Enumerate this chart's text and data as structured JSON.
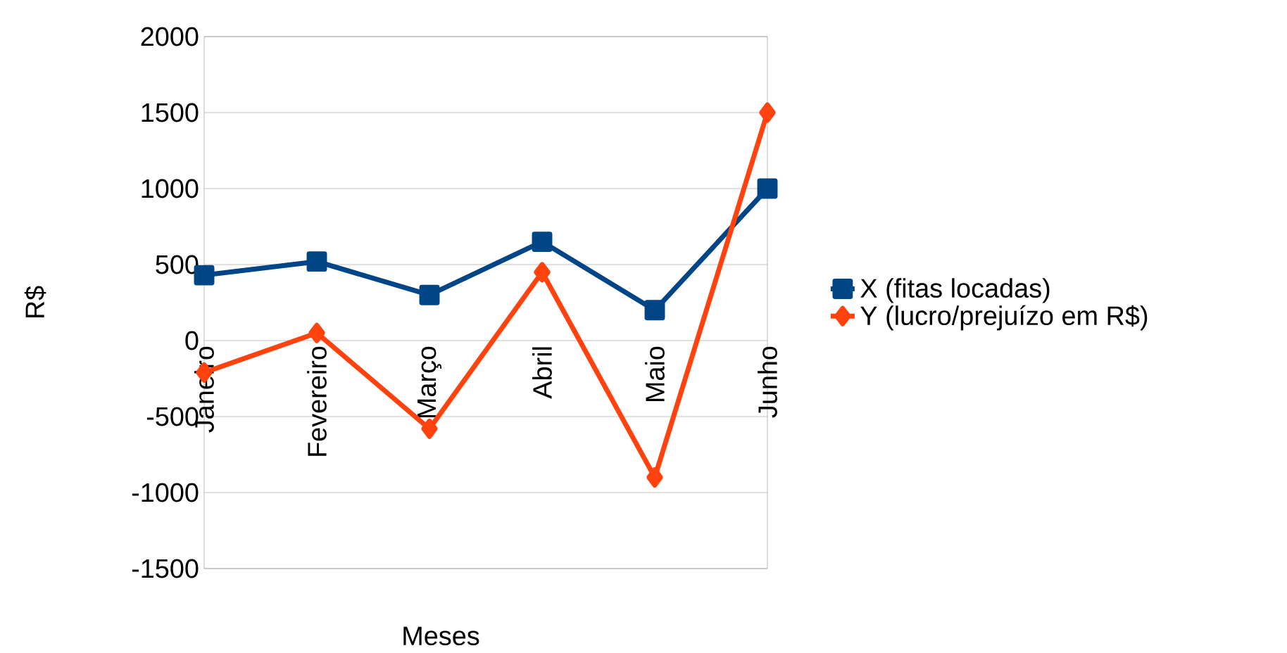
{
  "chart_data": {
    "type": "line",
    "xlabel": "Meses",
    "ylabel": "R$",
    "categories": [
      "Janeiro",
      "Fevereiro",
      "Março",
      "Abril",
      "Maio",
      "Junho"
    ],
    "series": [
      {
        "name": "X (fitas locadas)",
        "color": "#004586",
        "marker": "square",
        "values": [
          430,
          520,
          300,
          650,
          200,
          1000
        ]
      },
      {
        "name": "Y (lucro/prejuízo em R$)",
        "color": "#ff420e",
        "marker": "diamond",
        "values": [
          -210,
          50,
          -580,
          450,
          -900,
          1500
        ]
      }
    ],
    "ylim": [
      -1500,
      2000
    ],
    "yticks": [
      -1500,
      -1000,
      -500,
      0,
      500,
      1000,
      1500,
      2000
    ],
    "grid": "y",
    "legend": "right"
  }
}
